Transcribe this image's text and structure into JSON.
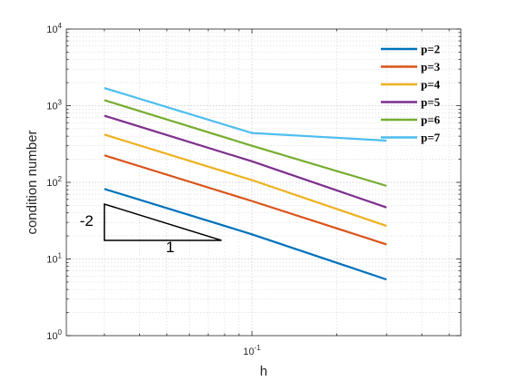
{
  "chart_data": {
    "type": "line",
    "xscale": "log",
    "yscale": "log",
    "xlabel": "h",
    "ylabel": "condition number",
    "xlim": [
      0.022,
      0.55
    ],
    "ylim": [
      1,
      10000
    ],
    "grid": true,
    "legend_position": "top-right",
    "x": [
      0.03,
      0.1,
      0.3
    ],
    "x_ticks": [
      {
        "value": 0.1,
        "base": "10",
        "exp": "-1"
      }
    ],
    "y_ticks": [
      {
        "value": 1,
        "base": "10",
        "exp": "0"
      },
      {
        "value": 10,
        "base": "10",
        "exp": "1"
      },
      {
        "value": 100,
        "base": "10",
        "exp": "2"
      },
      {
        "value": 1000,
        "base": "10",
        "exp": "3"
      },
      {
        "value": 10000,
        "base": "10",
        "exp": "4"
      }
    ],
    "series": [
      {
        "name": "p=2",
        "color": "#0072BD",
        "values": [
          82,
          21,
          5.4
        ]
      },
      {
        "name": "p=3",
        "color": "#D95319",
        "values": [
          225,
          57,
          15.5
        ]
      },
      {
        "name": "p=4",
        "color": "#EDB120",
        "values": [
          420,
          107,
          27
        ]
      },
      {
        "name": "p=5",
        "color": "#7E2F8E",
        "values": [
          740,
          188,
          47
        ]
      },
      {
        "name": "p=6",
        "color": "#77AC30",
        "values": [
          1180,
          300,
          90
        ]
      },
      {
        "name": "p=7",
        "color": "#4DBEEE",
        "values": [
          1700,
          440,
          350
        ]
      }
    ],
    "annotation": {
      "type": "slope-triangle",
      "x_left": 0.03,
      "x_right": 0.078,
      "y_bottom": 17.5,
      "y_top": 52,
      "vertical_label": "-2",
      "horizontal_label": "1"
    }
  }
}
